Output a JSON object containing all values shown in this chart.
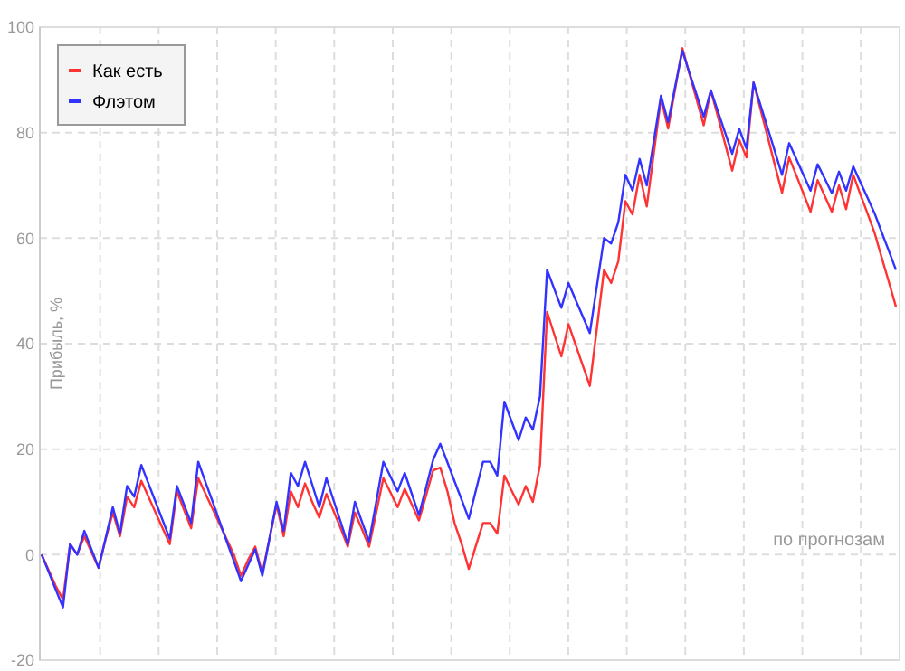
{
  "chart_data": {
    "type": "line",
    "ylabel": "Прибыль, %",
    "categories": [
      null,
      null,
      null,
      null,
      null,
      null,
      null,
      null,
      null,
      null,
      null,
      null,
      null,
      null,
      null,
      null,
      null,
      null,
      null,
      null,
      null,
      null,
      null,
      null,
      null,
      null,
      null,
      null,
      null,
      null,
      null,
      null,
      null,
      null,
      null,
      null,
      null,
      null,
      null,
      null,
      null,
      null,
      null,
      null,
      null,
      null,
      null,
      null,
      null,
      null,
      null,
      null,
      null,
      null,
      null,
      null,
      null,
      null,
      null,
      null,
      null,
      null,
      null,
      null,
      null,
      null,
      null,
      null,
      null,
      null,
      null,
      null,
      null,
      null,
      null,
      null,
      null,
      null,
      null,
      null,
      null,
      null,
      null,
      null,
      null,
      null,
      null,
      null,
      null,
      null,
      null,
      null,
      null,
      null,
      null,
      null,
      null,
      null,
      null,
      null,
      null,
      null,
      null,
      null,
      null,
      null,
      null,
      null,
      null,
      null,
      null,
      null,
      null,
      null,
      null,
      null,
      null,
      null,
      null,
      null,
      null
    ],
    "series": [
      {
        "name": "Как есть",
        "color": "#ff3333",
        "values": [
          0,
          -3,
          -6,
          -8.5,
          2,
          0,
          3.5,
          0.5,
          -2.5,
          3,
          8,
          3.5,
          11,
          9,
          14,
          11,
          8,
          5,
          2,
          12,
          8.5,
          5,
          14.5,
          11.6,
          8.7,
          5.8,
          2.9,
          0,
          -4,
          -1,
          1.5,
          -3.5,
          3,
          9.5,
          3.5,
          12,
          9,
          13.5,
          10,
          7,
          11.5,
          8.3,
          5,
          1.5,
          8,
          4.8,
          1.5,
          8,
          14.5,
          11.8,
          9,
          12.5,
          9.5,
          6.5,
          11.2,
          16,
          16.5,
          12,
          6,
          2,
          -2.7,
          1.7,
          6,
          6,
          4,
          15,
          12.2,
          9.5,
          13,
          10,
          17,
          46,
          41.8,
          37.6,
          43.7,
          39.8,
          35.9,
          32,
          43,
          54,
          51.5,
          55.6,
          67,
          64.5,
          72,
          66,
          76.2,
          86.5,
          80.8,
          88.4,
          96,
          91.1,
          86.3,
          81.4,
          88,
          83,
          77.9,
          72.8,
          78.6,
          75.3,
          89.5,
          84.3,
          79.1,
          73.8,
          68.6,
          75.3,
          71.9,
          68.5,
          65,
          71,
          68,
          65,
          70,
          65.5,
          72,
          68.3,
          64.7,
          61,
          56.3,
          51.7,
          47
        ]
      },
      {
        "name": "Флэтом",
        "color": "#3333ff",
        "values": [
          0,
          -3.3,
          -6.7,
          -10,
          2,
          0,
          4.5,
          1,
          -2.5,
          3.2,
          9,
          4,
          13,
          11,
          17,
          13.5,
          10,
          6.5,
          3,
          13,
          9.5,
          6,
          17.6,
          13.8,
          10.1,
          6.3,
          2.5,
          -1.2,
          -5,
          -2,
          1,
          -4,
          3,
          10,
          4.5,
          15.5,
          13,
          17.6,
          13.3,
          9,
          14.5,
          10.3,
          6.2,
          2,
          10,
          6.2,
          2.5,
          10,
          17.6,
          14.8,
          12,
          15.5,
          11.5,
          7.5,
          12.7,
          18,
          21,
          17.5,
          13.9,
          10.4,
          6.8,
          12.2,
          17.6,
          17.6,
          15,
          29,
          25.3,
          21.7,
          26,
          23.7,
          30,
          54,
          50.4,
          46.8,
          51.5,
          48.3,
          45.2,
          42,
          51,
          60,
          59,
          63,
          72,
          69,
          75,
          70,
          78.5,
          87,
          82,
          88.8,
          95.5,
          91.3,
          87.2,
          83,
          88,
          84,
          80,
          76,
          80.7,
          77,
          89.5,
          85.1,
          80.8,
          76.4,
          72,
          78,
          75,
          72,
          69,
          74,
          71.3,
          68.5,
          72.6,
          69,
          73.6,
          70.6,
          67.7,
          64.7,
          61.1,
          57.6,
          54
        ]
      }
    ],
    "ylim": [
      -20,
      100
    ],
    "yticks": [
      -20,
      0,
      20,
      40,
      60,
      80,
      100
    ],
    "grid": true,
    "legend": "top left",
    "tick_labels": "y",
    "annotations": [
      "по прогнозам"
    ]
  }
}
